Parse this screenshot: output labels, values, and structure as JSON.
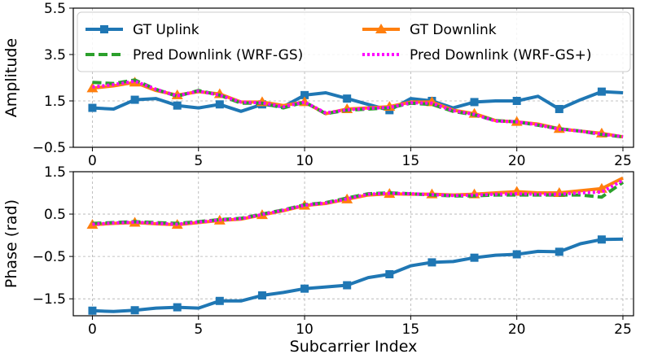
{
  "chart_data": [
    {
      "type": "line",
      "panel": "top",
      "ylabel": "Amplitude",
      "xlim": [
        -0.9,
        25.5
      ],
      "ylim": [
        -0.5,
        5.5
      ],
      "xticks": [
        0,
        5,
        10,
        15,
        20,
        25
      ],
      "yticks": [
        -0.5,
        1.5,
        3.5,
        5.5
      ],
      "ytick_labels": [
        "−0.5",
        "1.5",
        "3.5",
        "5.5"
      ],
      "grid": true,
      "legend_position": "top",
      "legend": [
        "GT Uplink",
        "GT Downlink",
        "Pred Downlink (WRF-GS)",
        "Pred Downlink (WRF-GS+)"
      ],
      "series": [
        {
          "name": "GT Uplink",
          "color": "#1f77b4",
          "style": "solid",
          "marker": "square",
          "x": [
            0,
            1,
            2,
            3,
            4,
            5,
            6,
            7,
            8,
            9,
            10,
            11,
            12,
            13,
            14,
            15,
            16,
            17,
            18,
            19,
            20,
            21,
            22,
            23,
            24,
            25
          ],
          "values": [
            1.2,
            1.15,
            1.55,
            1.6,
            1.3,
            1.2,
            1.35,
            1.05,
            1.35,
            1.25,
            1.75,
            1.85,
            1.6,
            1.35,
            1.1,
            1.6,
            1.5,
            1.2,
            1.45,
            1.5,
            1.5,
            1.7,
            1.15,
            1.55,
            1.9,
            1.85
          ]
        },
        {
          "name": "GT Downlink",
          "color": "#ff7f0e",
          "style": "solid",
          "marker": "triangle",
          "x": [
            0,
            1,
            2,
            3,
            4,
            5,
            6,
            7,
            8,
            9,
            10,
            11,
            12,
            13,
            14,
            15,
            16,
            17,
            18,
            19,
            20,
            21,
            22,
            23,
            24,
            25
          ],
          "values": [
            2.05,
            2.15,
            2.3,
            1.95,
            1.75,
            1.9,
            1.8,
            1.45,
            1.45,
            1.3,
            1.45,
            0.95,
            1.15,
            1.2,
            1.25,
            1.45,
            1.45,
            1.1,
            0.95,
            0.65,
            0.6,
            0.5,
            0.3,
            0.2,
            0.1,
            -0.05
          ]
        },
        {
          "name": "Pred Downlink (WRF-GS)",
          "color": "#2ca02c",
          "style": "dashed",
          "marker": "none",
          "x": [
            0,
            1,
            2,
            3,
            4,
            5,
            6,
            7,
            8,
            9,
            10,
            11,
            12,
            13,
            14,
            15,
            16,
            17,
            18,
            19,
            20,
            21,
            22,
            23,
            24,
            25
          ],
          "values": [
            2.3,
            2.25,
            2.4,
            2.0,
            1.7,
            1.95,
            1.75,
            1.4,
            1.4,
            1.2,
            1.45,
            0.95,
            1.1,
            1.15,
            1.2,
            1.4,
            1.35,
            1.05,
            0.9,
            0.65,
            0.6,
            0.45,
            0.3,
            0.2,
            0.05,
            -0.05
          ]
        },
        {
          "name": "Pred Downlink (WRF-GS+)",
          "color": "#ff00ff",
          "style": "dotted",
          "marker": "none",
          "x": [
            0,
            1,
            2,
            3,
            4,
            5,
            6,
            7,
            8,
            9,
            10,
            11,
            12,
            13,
            14,
            15,
            16,
            17,
            18,
            19,
            20,
            21,
            22,
            23,
            24,
            25
          ],
          "values": [
            2.1,
            2.2,
            2.35,
            2.0,
            1.72,
            1.92,
            1.75,
            1.45,
            1.42,
            1.25,
            1.45,
            0.98,
            1.12,
            1.18,
            1.22,
            1.42,
            1.4,
            1.08,
            0.92,
            0.63,
            0.6,
            0.47,
            0.28,
            0.2,
            0.07,
            -0.04
          ]
        }
      ]
    },
    {
      "type": "line",
      "panel": "bottom",
      "xlabel": "Subcarrier Index",
      "ylabel": "Phase (rad)",
      "xlim": [
        -0.9,
        25.5
      ],
      "ylim": [
        -1.9,
        1.5
      ],
      "xticks": [
        0,
        5,
        10,
        15,
        20,
        25
      ],
      "yticks": [
        -1.5,
        -0.5,
        0.5,
        1.5
      ],
      "ytick_labels": [
        "−1.5",
        "−0.5",
        "0.5",
        "1.5"
      ],
      "grid": true,
      "series": [
        {
          "name": "GT Uplink",
          "color": "#1f77b4",
          "style": "solid",
          "marker": "square",
          "x": [
            0,
            1,
            2,
            3,
            4,
            5,
            6,
            7,
            8,
            9,
            10,
            11,
            12,
            13,
            14,
            15,
            16,
            17,
            18,
            19,
            20,
            21,
            22,
            23,
            24,
            25
          ],
          "values": [
            -1.78,
            -1.8,
            -1.77,
            -1.72,
            -1.7,
            -1.72,
            -1.55,
            -1.55,
            -1.42,
            -1.35,
            -1.26,
            -1.22,
            -1.18,
            -1.0,
            -0.92,
            -0.72,
            -0.64,
            -0.62,
            -0.53,
            -0.47,
            -0.45,
            -0.38,
            -0.39,
            -0.2,
            -0.1,
            -0.09
          ]
        },
        {
          "name": "GT Downlink",
          "color": "#ff7f0e",
          "style": "solid",
          "marker": "triangle",
          "x": [
            0,
            1,
            2,
            3,
            4,
            5,
            6,
            7,
            8,
            9,
            10,
            11,
            12,
            13,
            14,
            15,
            16,
            17,
            18,
            19,
            20,
            21,
            22,
            23,
            24,
            25
          ],
          "values": [
            0.25,
            0.28,
            0.3,
            0.27,
            0.25,
            0.3,
            0.35,
            0.38,
            0.48,
            0.58,
            0.7,
            0.75,
            0.85,
            0.95,
            0.98,
            0.97,
            0.97,
            0.95,
            0.97,
            1.0,
            1.03,
            1.0,
            1.0,
            1.05,
            1.1,
            1.35
          ]
        },
        {
          "name": "Pred Downlink (WRF-GS)",
          "color": "#2ca02c",
          "style": "dashed",
          "marker": "none",
          "x": [
            0,
            1,
            2,
            3,
            4,
            5,
            6,
            7,
            8,
            9,
            10,
            11,
            12,
            13,
            14,
            15,
            16,
            17,
            18,
            19,
            20,
            21,
            22,
            23,
            24,
            25
          ],
          "values": [
            0.28,
            0.3,
            0.32,
            0.3,
            0.28,
            0.32,
            0.37,
            0.4,
            0.5,
            0.6,
            0.72,
            0.77,
            0.88,
            0.98,
            1.0,
            0.98,
            0.95,
            0.93,
            0.93,
            0.95,
            0.95,
            0.95,
            0.95,
            0.95,
            0.9,
            1.25
          ]
        },
        {
          "name": "Pred Downlink (WRF-GS+)",
          "color": "#ff00ff",
          "style": "dotted",
          "marker": "none",
          "x": [
            0,
            1,
            2,
            3,
            4,
            5,
            6,
            7,
            8,
            9,
            10,
            11,
            12,
            13,
            14,
            15,
            16,
            17,
            18,
            19,
            20,
            21,
            22,
            23,
            24,
            25
          ],
          "values": [
            0.26,
            0.29,
            0.31,
            0.28,
            0.26,
            0.31,
            0.36,
            0.39,
            0.49,
            0.59,
            0.71,
            0.76,
            0.86,
            0.97,
            0.99,
            0.98,
            0.96,
            0.94,
            0.95,
            0.97,
            0.98,
            0.97,
            0.97,
            1.0,
            1.02,
            1.3
          ]
        }
      ]
    }
  ]
}
